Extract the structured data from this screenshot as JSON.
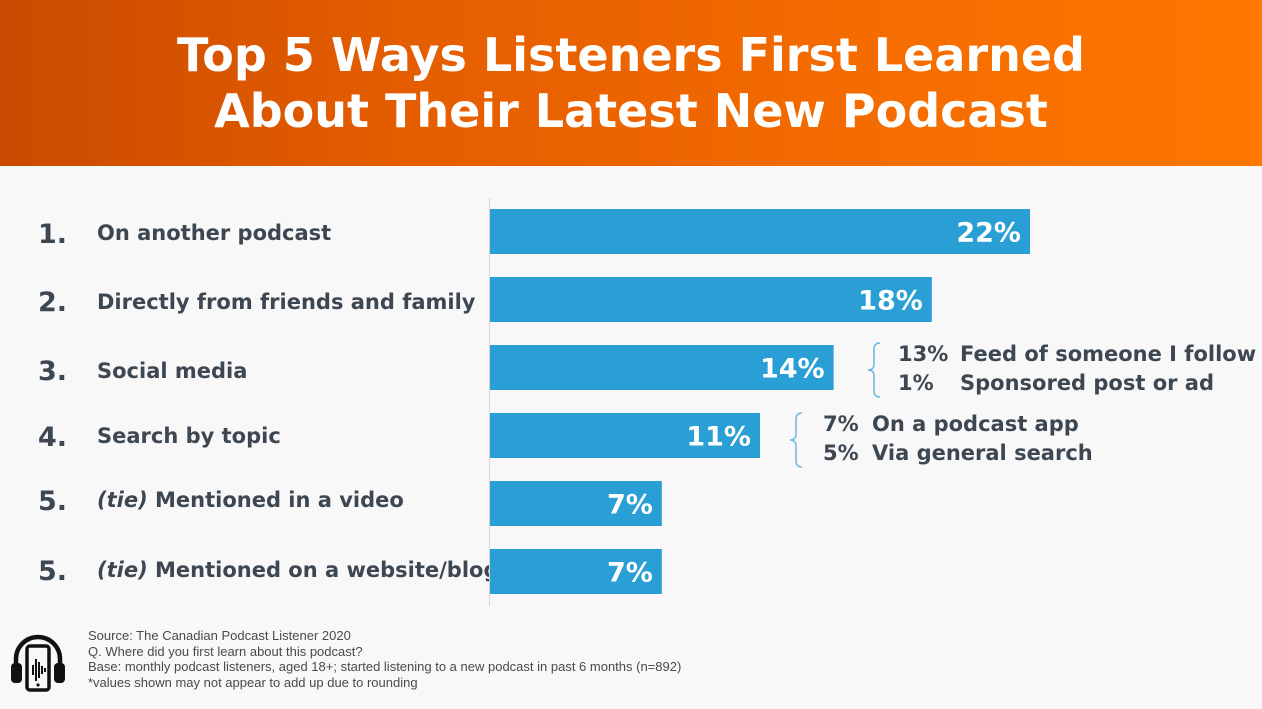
{
  "header": {
    "title_line1": "Top 5 Ways Listeners First Learned",
    "title_line2": "About Their Latest New Podcast"
  },
  "colors": {
    "bar": "#2a9fd6",
    "header_start": "#c94a00",
    "header_end": "#ff7700",
    "text": "#3d4752"
  },
  "chart_data": {
    "type": "bar",
    "orientation": "horizontal",
    "title": "Top 5 Ways Listeners First Learned About Their Latest New Podcast",
    "categories": [
      "On another podcast",
      "Directly from friends and family",
      "Social media",
      "Search by topic",
      "(tie) Mentioned in a video",
      "(tie) Mentioned on a website/blog"
    ],
    "ranks": [
      "1.",
      "2.",
      "3.",
      "4.",
      "5.",
      "5."
    ],
    "tie_prefix": "(tie)",
    "tie_labels": [
      "Mentioned in a video",
      "Mentioned on a website/blog"
    ],
    "values": [
      22,
      18,
      14,
      11,
      7,
      7
    ],
    "value_labels": [
      "22%",
      "18%",
      "14%",
      "11%",
      "7%",
      "7%"
    ],
    "xlim": [
      0,
      22
    ],
    "breakdowns": {
      "social_media": [
        {
          "value": "13%",
          "label": "Feed of someone I follow"
        },
        {
          "value": "1%",
          "label": "Sponsored post or ad"
        }
      ],
      "search_by_topic": [
        {
          "value": "7%",
          "label": "On a podcast app"
        },
        {
          "value": "5%",
          "label": "Via general search"
        }
      ]
    }
  },
  "footer": {
    "source": "Source: The Canadian Podcast Listener 2020",
    "question": "Q. Where did you first learn about this podcast?",
    "base": "Base: monthly podcast listeners, aged 18+; started listening to a new podcast in past 6 months (n=892)",
    "note": "*values shown may not appear to add up due to rounding"
  },
  "logo": {
    "icon": "headphones-phone-icon"
  }
}
